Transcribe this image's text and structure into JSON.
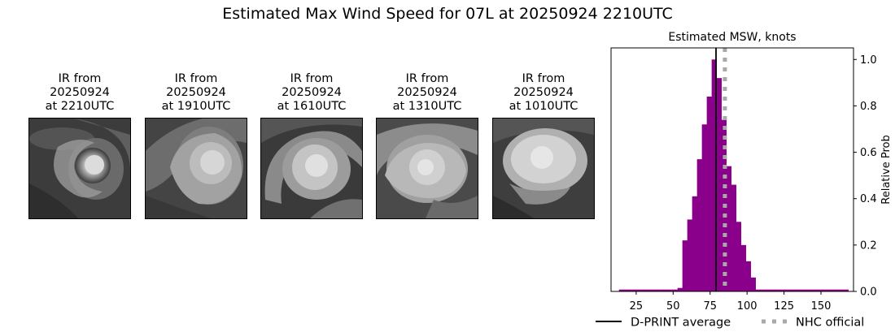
{
  "title": "Estimated Max Wind Speed for 07L at 20250924 2210UTC",
  "panels": [
    {
      "line1": "IR from",
      "line2": "20250924",
      "line3": "at 2210UTC"
    },
    {
      "line1": "IR from",
      "line2": "20250924",
      "line3": "at 1910UTC"
    },
    {
      "line1": "IR from",
      "line2": "20250924",
      "line3": "at 1610UTC"
    },
    {
      "line1": "IR from",
      "line2": "20250924",
      "line3": "at 1310UTC"
    },
    {
      "line1": "IR from",
      "line2": "20250924",
      "line3": "at 1010UTC"
    }
  ],
  "chart_data": {
    "type": "bar",
    "title": "Estimated MSW, knots",
    "xlabel": "",
    "ylabel": "Relative Prob",
    "xlim": [
      8,
      172
    ],
    "ylim": [
      0,
      1.05
    ],
    "xticks": [
      25,
      50,
      75,
      100,
      125,
      150
    ],
    "yticks": [
      0.0,
      0.2,
      0.4,
      0.6,
      0.8,
      1.0
    ],
    "yaxis_side": "right",
    "grid": false,
    "bar_color": "#8b008b",
    "bin_width": 3.3,
    "bins": [
      {
        "x": 15.0,
        "value": 0.008
      },
      {
        "x": 18.3,
        "value": 0.008
      },
      {
        "x": 21.6,
        "value": 0.008
      },
      {
        "x": 24.9,
        "value": 0.008
      },
      {
        "x": 28.2,
        "value": 0.008
      },
      {
        "x": 31.5,
        "value": 0.008
      },
      {
        "x": 34.8,
        "value": 0.008
      },
      {
        "x": 38.1,
        "value": 0.008
      },
      {
        "x": 41.4,
        "value": 0.008
      },
      {
        "x": 44.7,
        "value": 0.008
      },
      {
        "x": 48.0,
        "value": 0.008
      },
      {
        "x": 51.3,
        "value": 0.008
      },
      {
        "x": 54.6,
        "value": 0.015
      },
      {
        "x": 57.9,
        "value": 0.22
      },
      {
        "x": 61.2,
        "value": 0.31
      },
      {
        "x": 64.5,
        "value": 0.41
      },
      {
        "x": 67.8,
        "value": 0.57
      },
      {
        "x": 71.1,
        "value": 0.72
      },
      {
        "x": 74.4,
        "value": 0.84
      },
      {
        "x": 77.7,
        "value": 1.0
      },
      {
        "x": 81.0,
        "value": 0.92
      },
      {
        "x": 84.3,
        "value": 0.74
      },
      {
        "x": 87.6,
        "value": 0.54
      },
      {
        "x": 90.9,
        "value": 0.46
      },
      {
        "x": 94.2,
        "value": 0.3
      },
      {
        "x": 97.5,
        "value": 0.2
      },
      {
        "x": 100.8,
        "value": 0.13
      },
      {
        "x": 104.1,
        "value": 0.06
      },
      {
        "x": 107.4,
        "value": 0.008
      },
      {
        "x": 110.7,
        "value": 0.008
      },
      {
        "x": 114.0,
        "value": 0.008
      },
      {
        "x": 117.3,
        "value": 0.008
      },
      {
        "x": 120.6,
        "value": 0.008
      },
      {
        "x": 123.9,
        "value": 0.008
      },
      {
        "x": 127.2,
        "value": 0.008
      },
      {
        "x": 130.5,
        "value": 0.008
      },
      {
        "x": 133.8,
        "value": 0.008
      },
      {
        "x": 137.1,
        "value": 0.008
      },
      {
        "x": 140.4,
        "value": 0.008
      },
      {
        "x": 143.7,
        "value": 0.008
      },
      {
        "x": 147.0,
        "value": 0.008
      },
      {
        "x": 150.3,
        "value": 0.008
      },
      {
        "x": 153.6,
        "value": 0.008
      },
      {
        "x": 156.9,
        "value": 0.008
      },
      {
        "x": 160.2,
        "value": 0.008
      },
      {
        "x": 163.5,
        "value": 0.008
      },
      {
        "x": 166.8,
        "value": 0.008
      }
    ],
    "dprint_average": 79,
    "nhc_official": 85,
    "dprint_color": "#000000",
    "nhc_color": "#a9a9a9",
    "legend": {
      "position": "bottom",
      "items": [
        {
          "label": "D-PRINT average",
          "style": "solid",
          "color": "#000000"
        },
        {
          "label": "NHC official",
          "style": "dotted",
          "color": "#a9a9a9"
        }
      ]
    }
  }
}
